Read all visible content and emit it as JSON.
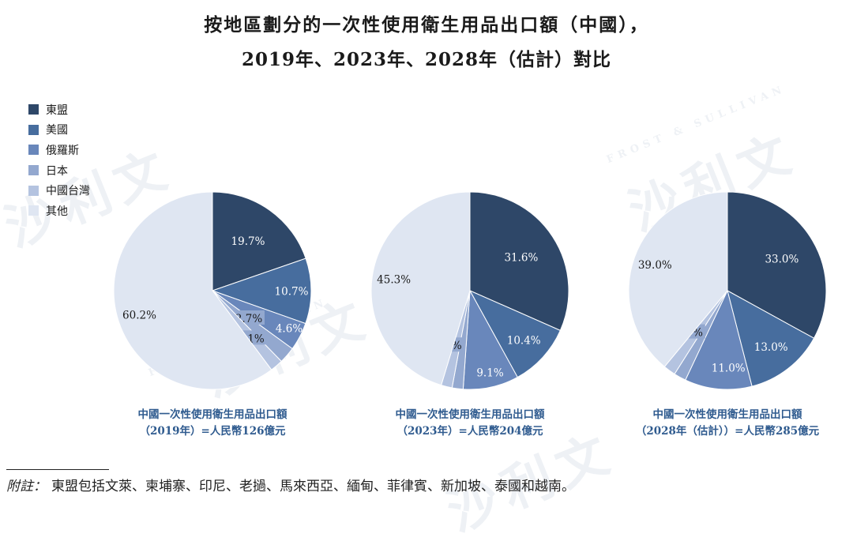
{
  "title": {
    "line1": "按地區劃分的一次性使用衛生用品出口額（中國），",
    "line2": "2019年、2023年、2028年（估計）對比"
  },
  "watermark": {
    "big": "沙利文",
    "small": "FROST & SULLIVAN"
  },
  "chart_data": {
    "type": "pie",
    "legend_position": "top-left",
    "categories": [
      "東盟",
      "美國",
      "俄羅斯",
      "日本",
      "中國台灣",
      "其他"
    ],
    "colors": [
      "#2e4768",
      "#476d9e",
      "#6987bb",
      "#93a8cf",
      "#b4c3e0",
      "#dfe6f2"
    ],
    "pies": [
      {
        "caption_line1": "中國一次性使用衛生用品出口額",
        "caption_line2": "（2019年）=人民幣126億元",
        "values": [
          19.7,
          10.7,
          4.6,
          2.7,
          2.1,
          60.2
        ],
        "labels": [
          "19.7%",
          "10.7%",
          "4.6%",
          "2.7%",
          "2.1%",
          "60.2%"
        ]
      },
      {
        "caption_line1": "中國一次性使用衛生用品出口額",
        "caption_line2": "（2023年）=人民幣204億元",
        "values": [
          31.6,
          10.4,
          9.1,
          1.8,
          1.8,
          45.3
        ],
        "labels": [
          "31.6%",
          "10.4%",
          "9.1%",
          "1.8%",
          "1.8%",
          "45.3%"
        ]
      },
      {
        "caption_line1": "中國一次性使用衛生用品出口額",
        "caption_line2": "（2028年（估計））=人民幣285億元",
        "values": [
          33.0,
          13.0,
          11.0,
          2.0,
          2.0,
          39.0
        ],
        "labels": [
          "33.0%",
          "13.0%",
          "11.0%",
          "2.0%",
          "2.0%",
          "39.0%"
        ]
      }
    ]
  },
  "footnote": {
    "label": "附註：",
    "text": "東盟包括文萊、柬埔寨、印尼、老撾、馬來西亞、緬甸、菲律賓、新加坡、泰國和越南。"
  }
}
